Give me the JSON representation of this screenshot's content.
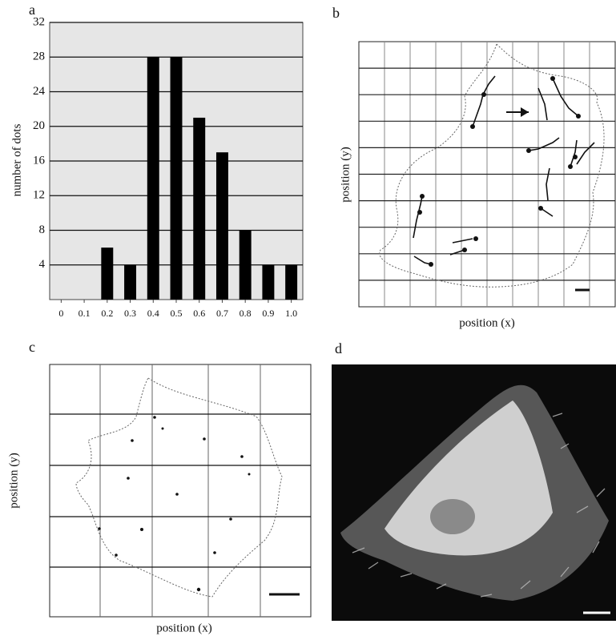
{
  "chart_data": {
    "type": "bar",
    "y_label": "number of dots",
    "categories": [
      "0",
      "0.1",
      "0.2",
      "0.3",
      "0.4",
      "0.5",
      "0.6",
      "0.7",
      "0.8",
      "0.9",
      "1.0"
    ],
    "values": [
      0,
      0,
      6,
      4,
      28,
      28,
      21,
      17,
      8,
      4,
      4
    ],
    "color": "#000000",
    "ylim": [
      0,
      32
    ],
    "yticks": [
      4,
      8,
      12,
      16,
      20,
      24,
      28,
      32
    ],
    "grid": true
  },
  "panels": [
    {
      "letter": "a"
    },
    {
      "letter": "b",
      "x_label": "position (x)",
      "y_label": "position (y)"
    },
    {
      "letter": "c",
      "x_label": "position (x)",
      "y_label": "position (y)"
    },
    {
      "letter": "d"
    }
  ]
}
